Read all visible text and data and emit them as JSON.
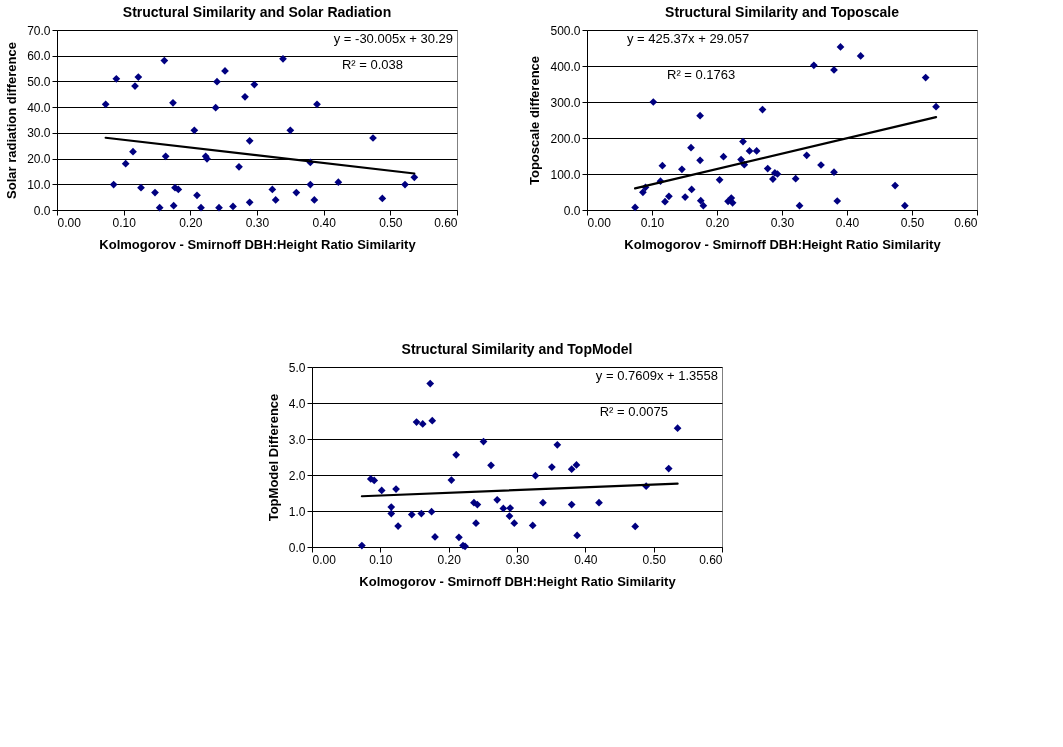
{
  "chart_data": [
    {
      "type": "scatter",
      "title": "Structural Similarity and Solar Radiation",
      "xlabel": "Kolmogorov - Smirnoff DBH:Height Ratio Similarity",
      "ylabel": "Solar radiation difference",
      "marker": "diamond",
      "grid": "y",
      "xlim": [
        0,
        0.6
      ],
      "xticks": [
        {
          "value": 0,
          "label": "0.00"
        },
        {
          "value": 0.1,
          "label": "0.10"
        },
        {
          "value": 0.2,
          "label": "0.20"
        },
        {
          "value": 0.3,
          "label": "0.30"
        },
        {
          "value": 0.4,
          "label": "0.40"
        },
        {
          "value": 0.5,
          "label": "0.50"
        },
        {
          "value": 0.6,
          "label": "0.60"
        }
      ],
      "ylim": [
        0,
        70
      ],
      "yticks": [
        {
          "value": 0,
          "label": "0.0"
        },
        {
          "value": 10,
          "label": "10.0"
        },
        {
          "value": 20,
          "label": "20.0"
        },
        {
          "value": 30,
          "label": "30.0"
        },
        {
          "value": 40,
          "label": "40.0"
        },
        {
          "value": 50,
          "label": "50.0"
        },
        {
          "value": 60,
          "label": "60.0"
        },
        {
          "value": 70,
          "label": "70.0"
        }
      ],
      "annotations": [
        "y = -30.005x + 30.29",
        "R² = 0.038"
      ],
      "series": [
        {
          "type": "scatter",
          "color": "#000080",
          "x": [
            0.073,
            0.085,
            0.089,
            0.103,
            0.114,
            0.117,
            0.122,
            0.126,
            0.147,
            0.154,
            0.161,
            0.163,
            0.174,
            0.175,
            0.177,
            0.182,
            0.206,
            0.21,
            0.216,
            0.223,
            0.225,
            0.238,
            0.24,
            0.243,
            0.252,
            0.264,
            0.273,
            0.282,
            0.289,
            0.289,
            0.296,
            0.323,
            0.328,
            0.339,
            0.35,
            0.359,
            0.38,
            0.38,
            0.386,
            0.39,
            0.422,
            0.474,
            0.488,
            0.522,
            0.536
          ],
          "values": [
            41.1,
            9.9,
            51.0,
            18.0,
            22.7,
            48.2,
            51.7,
            8.7,
            6.8,
            0.9,
            58.1,
            20.9,
            41.7,
            1.7,
            8.7,
            8.0,
            31.0,
            5.7,
            0.9,
            20.9,
            19.9,
            39.8,
            49.9,
            0.9,
            54.1,
            1.4,
            16.8,
            44.0,
            26.9,
            3.0,
            48.8,
            8.0,
            3.9,
            58.8,
            31.0,
            6.8,
            18.5,
            9.9,
            3.9,
            41.1,
            10.8,
            28.0,
            4.5,
            9.9,
            12.7
          ]
        },
        {
          "type": "line",
          "marker": "none",
          "color": "#000000",
          "line_style": "solid",
          "x": [
            0.073,
            0.536
          ],
          "values": [
            28.1,
            14.2
          ]
        }
      ]
    },
    {
      "type": "scatter",
      "title": "Structural Similarity and Toposcale",
      "xlabel": "Kolmogorov - Smirnoff DBH:Height Ratio Similarity",
      "ylabel": "Toposcale difference",
      "marker": "diamond",
      "grid": "y",
      "xlim": [
        0,
        0.6
      ],
      "xticks": [
        {
          "value": 0,
          "label": "0.00"
        },
        {
          "value": 0.1,
          "label": "0.10"
        },
        {
          "value": 0.2,
          "label": "0.20"
        },
        {
          "value": 0.3,
          "label": "0.30"
        },
        {
          "value": 0.4,
          "label": "0.40"
        },
        {
          "value": 0.5,
          "label": "0.50"
        },
        {
          "value": 0.6,
          "label": "0.60"
        }
      ],
      "ylim": [
        0,
        500
      ],
      "yticks": [
        {
          "value": 0,
          "label": "0.0"
        },
        {
          "value": 100,
          "label": "100.0"
        },
        {
          "value": 200,
          "label": "200.0"
        },
        {
          "value": 300,
          "label": "300.0"
        },
        {
          "value": 400,
          "label": "400.0"
        },
        {
          "value": 500,
          "label": "500.0"
        }
      ],
      "annotations": [
        "y = 425.37x + 29.057",
        "R² = 0.1763"
      ],
      "series": [
        {
          "type": "scatter",
          "color": "#000080",
          "x": [
            0.074,
            0.086,
            0.09,
            0.102,
            0.113,
            0.116,
            0.12,
            0.126,
            0.146,
            0.151,
            0.16,
            0.161,
            0.174,
            0.174,
            0.175,
            0.179,
            0.204,
            0.21,
            0.217,
            0.222,
            0.224,
            0.237,
            0.24,
            0.242,
            0.25,
            0.261,
            0.27,
            0.278,
            0.286,
            0.289,
            0.293,
            0.321,
            0.327,
            0.338,
            0.349,
            0.36,
            0.38,
            0.38,
            0.385,
            0.39,
            0.421,
            0.474,
            0.489,
            0.521,
            0.537
          ],
          "values": [
            7,
            49,
            63,
            300,
            80,
            123,
            23,
            38,
            113,
            36,
            173,
            57,
            262,
            138,
            26,
            12,
            84,
            148,
            24,
            33,
            20,
            140,
            190,
            126,
            164,
            164,
            279,
            115,
            86,
            103,
            100,
            87,
            12,
            152,
            402,
            125,
            389,
            105,
            25,
            453,
            428,
            68,
            12,
            368,
            287
          ]
        },
        {
          "type": "line",
          "marker": "none",
          "color": "#000000",
          "line_style": "solid",
          "x": [
            0.074,
            0.537
          ],
          "values": [
            60,
            258
          ]
        }
      ]
    },
    {
      "type": "scatter",
      "title": "Structural Similarity and TopModel",
      "xlabel": "Kolmogorov - Smirnoff DBH:Height Ratio Similarity",
      "ylabel": "TopModel Difference",
      "marker": "diamond",
      "grid": "y",
      "xlim": [
        0,
        0.6
      ],
      "xticks": [
        {
          "value": 0,
          "label": "0.00"
        },
        {
          "value": 0.1,
          "label": "0.10"
        },
        {
          "value": 0.2,
          "label": "0.20"
        },
        {
          "value": 0.3,
          "label": "0.30"
        },
        {
          "value": 0.4,
          "label": "0.40"
        },
        {
          "value": 0.5,
          "label": "0.50"
        },
        {
          "value": 0.6,
          "label": "0.60"
        }
      ],
      "ylim": [
        0,
        5
      ],
      "yticks": [
        {
          "value": 0,
          "label": "0.0"
        },
        {
          "value": 1,
          "label": "1.0"
        },
        {
          "value": 2,
          "label": "2.0"
        },
        {
          "value": 3,
          "label": "3.0"
        },
        {
          "value": 4,
          "label": "4.0"
        },
        {
          "value": 5,
          "label": "5.0"
        }
      ],
      "annotations": [
        "y = 0.7609x + 1.3558",
        "R² = 0.0075"
      ],
      "series": [
        {
          "type": "scatter",
          "color": "#000080",
          "x": [
            0.073,
            0.086,
            0.091,
            0.102,
            0.116,
            0.116,
            0.123,
            0.126,
            0.146,
            0.153,
            0.16,
            0.162,
            0.173,
            0.175,
            0.176,
            0.18,
            0.204,
            0.211,
            0.215,
            0.221,
            0.224,
            0.237,
            0.24,
            0.242,
            0.251,
            0.262,
            0.271,
            0.28,
            0.289,
            0.29,
            0.296,
            0.323,
            0.327,
            0.338,
            0.351,
            0.359,
            0.38,
            0.38,
            0.387,
            0.388,
            0.42,
            0.473,
            0.489,
            0.522,
            0.535
          ],
          "values": [
            0.04,
            1.89,
            1.85,
            1.57,
            1.11,
            0.93,
            1.61,
            0.58,
            0.9,
            3.47,
            0.93,
            3.42,
            4.54,
            0.98,
            3.51,
            0.28,
            1.86,
            2.56,
            0.27,
            0.04,
            0.02,
            1.23,
            0.66,
            1.18,
            2.93,
            2.27,
            1.31,
            1.07,
            0.86,
            1.08,
            0.66,
            0.6,
            1.98,
            1.23,
            2.22,
            2.84,
            2.16,
            1.18,
            2.28,
            0.32,
            1.23,
            0.57,
            1.69,
            2.18,
            3.3
          ]
        },
        {
          "type": "line",
          "marker": "none",
          "color": "#000000",
          "line_style": "solid",
          "x": [
            0.073,
            0.535
          ],
          "values": [
            1.41,
            1.76
          ]
        }
      ]
    }
  ]
}
